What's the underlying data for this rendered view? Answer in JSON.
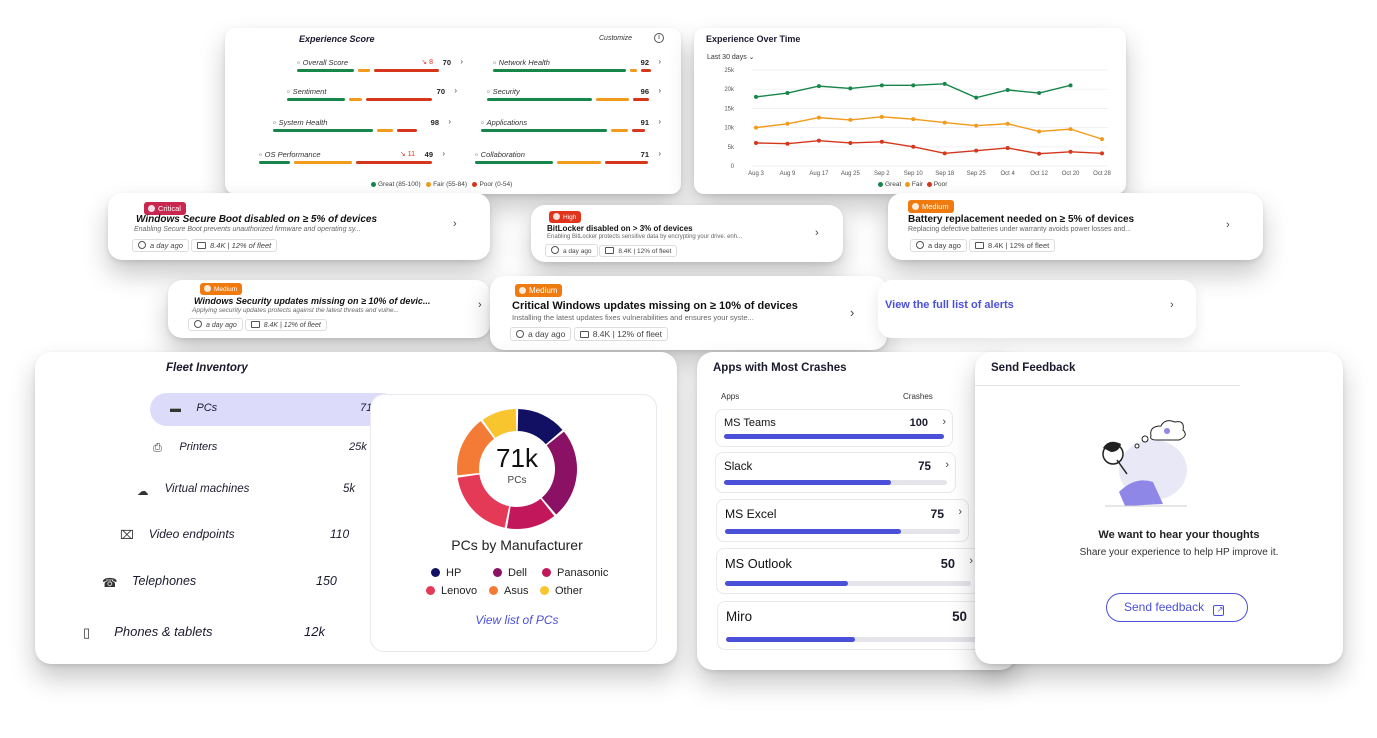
{
  "experience_score": {
    "title": "Experience Score",
    "customize_label": "Customize",
    "metrics_left": [
      {
        "label": "Overall Score",
        "trend": "↘ 8",
        "value": "70",
        "bars": {
          "great": 0.37,
          "fair": 0.08,
          "poor": 0.42
        }
      },
      {
        "label": "Sentiment",
        "trend": "",
        "value": "70",
        "bars": {
          "great": 0.37,
          "fair": 0.08,
          "poor": 0.42
        }
      },
      {
        "label": "System Health",
        "trend": "",
        "value": "98",
        "bars": {
          "great": 0.6,
          "fair": 0.1,
          "poor": 0.12
        }
      },
      {
        "label": "OS Performance",
        "trend": "↘ 11",
        "value": "49",
        "bars": {
          "great": 0.18,
          "fair": 0.33,
          "poor": 0.44
        }
      }
    ],
    "metrics_right": [
      {
        "label": "Network Health",
        "trend": "",
        "value": "92",
        "bars": {
          "great": 0.85,
          "fair": 0.05,
          "poor": 0.06
        }
      },
      {
        "label": "Security",
        "trend": "",
        "value": "96",
        "bars": {
          "great": 0.65,
          "fair": 0.2,
          "poor": 0.1
        }
      },
      {
        "label": "Applications",
        "trend": "",
        "value": "91",
        "bars": {
          "great": 0.75,
          "fair": 0.1,
          "poor": 0.08
        }
      },
      {
        "label": "Collaboration",
        "trend": "",
        "value": "71",
        "bars": {
          "great": 0.45,
          "fair": 0.25,
          "poor": 0.25
        }
      }
    ],
    "legend": [
      "Great (85-100)",
      "Fair (55-84)",
      "Poor (0-54)"
    ],
    "colors": {
      "great": "#16864a",
      "fair": "#f29a1a",
      "poor": "#d6361c"
    }
  },
  "experience_over_time": {
    "title": "Experience Over Time",
    "range_label": "Last 30 days",
    "legend": [
      "Great",
      "Fair",
      "Poor"
    ]
  },
  "chart_data": {
    "type": "line",
    "x": [
      "Aug 3",
      "Aug 9",
      "Aug 17",
      "Aug 25",
      "Sep 2",
      "Sep 10",
      "Sep 18",
      "Sep 25",
      "Oct 4",
      "Oct 12",
      "Oct 20",
      "Oct 28"
    ],
    "yticks": [
      "0",
      "5k",
      "10k",
      "15k",
      "20k",
      "25k"
    ],
    "ylim": [
      0,
      25000
    ],
    "series": [
      {
        "name": "Great",
        "color": "#16864a",
        "values": [
          18000,
          19000,
          20800,
          20200,
          21000,
          21000,
          21400,
          17800,
          19800,
          19000,
          21000,
          null
        ]
      },
      {
        "name": "Fair",
        "color": "#f29a1a",
        "values": [
          10000,
          11000,
          12600,
          12000,
          12800,
          12200,
          11300,
          10500,
          11000,
          9000,
          9600,
          7000
        ]
      },
      {
        "name": "Poor",
        "color": "#d6361c",
        "values": [
          6000,
          5800,
          6600,
          6000,
          6300,
          5000,
          3300,
          4000,
          4700,
          3200,
          3700,
          3300
        ]
      }
    ],
    "legend_position": "bottom"
  },
  "alerts": [
    {
      "severity": "Critical",
      "title": "Windows Secure Boot disabled on ≥ 5% of devices",
      "desc": "Enabling Secure Boot prevents unauthorized firmware and operating sy...",
      "time": "a day ago",
      "fleet": "8.4K | 12% of fleet"
    },
    {
      "severity": "High",
      "title": "BitLocker disabled on > 3% of devices",
      "desc": "Enabling BitLocker protects sensitive data by encrypting your drive. enh...",
      "time": "a day ago",
      "fleet": "8.4K | 12% of fleet"
    },
    {
      "severity": "Medium",
      "title": "Battery replacement needed on ≥ 5% of devices",
      "desc": "Replacing defective batteries under warranty avoids power losses and...",
      "time": "a day ago",
      "fleet": "8.4K | 12% of fleet"
    },
    {
      "severity": "Medium",
      "title": "Windows Security updates missing on ≥ 10% of devic...",
      "desc": "Applying security updates protects against the latest threats and vulne...",
      "time": "a day ago",
      "fleet": "8.4K | 12% of fleet"
    },
    {
      "severity": "Medium",
      "title": "Critical Windows updates missing on ≥ 10% of devices",
      "desc": "Installing the latest updates fixes vulnerabilities and ensures your syste...",
      "time": "a day ago",
      "fleet": "8.4K | 12% of fleet"
    }
  ],
  "view_alerts_link": "View the full list of alerts",
  "fleet_inventory": {
    "title": "Fleet Inventory",
    "items": [
      {
        "label": "PCs",
        "value": "71k",
        "icon": "laptop-icon"
      },
      {
        "label": "Printers",
        "value": "25k",
        "icon": "printer-icon"
      },
      {
        "label": "Virtual machines",
        "value": "5k",
        "icon": "cloud-icon"
      },
      {
        "label": "Video endpoints",
        "value": "110",
        "icon": "video-icon"
      },
      {
        "label": "Telephones",
        "value": "150",
        "icon": "telephone-icon"
      },
      {
        "label": "Phones & tablets",
        "value": "12k",
        "icon": "tablet-icon"
      }
    ],
    "donut": {
      "center_value": "71k",
      "center_label": "PCs",
      "title": "PCs by Manufacturer",
      "segments": [
        {
          "name": "HP",
          "color": "#121063",
          "share": 0.14
        },
        {
          "name": "Dell",
          "color": "#8b1164",
          "share": 0.25
        },
        {
          "name": "Panasonic",
          "color": "#c2185b",
          "share": 0.14
        },
        {
          "name": "Lenovo",
          "color": "#e53958",
          "share": 0.2
        },
        {
          "name": "Asus",
          "color": "#f47b35",
          "share": 0.17
        },
        {
          "name": "Other",
          "color": "#f9c52e",
          "share": 0.1
        }
      ],
      "link": "View list of PCs"
    }
  },
  "crashes": {
    "title": "Apps with Most Crashes",
    "col_apps": "Apps",
    "col_crashes": "Crashes",
    "rows": [
      {
        "app": "MS Teams",
        "crashes": "100",
        "fraction": 1.0
      },
      {
        "app": "Slack",
        "crashes": "75",
        "fraction": 0.75
      },
      {
        "app": "MS Excel",
        "crashes": "75",
        "fraction": 0.75
      },
      {
        "app": "MS Outlook",
        "crashes": "50",
        "fraction": 0.5
      },
      {
        "app": "Miro",
        "crashes": "50",
        "fraction": 0.5
      }
    ],
    "bar_color": "#4b50d8"
  },
  "feedback": {
    "title": "Send Feedback",
    "heading": "We want to hear your thoughts",
    "subtext": "Share your experience to help HP improve it.",
    "button": "Send feedback"
  }
}
